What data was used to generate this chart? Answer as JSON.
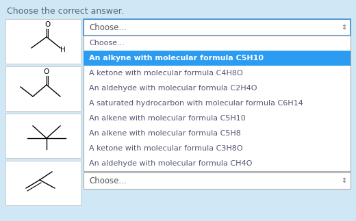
{
  "bg_color": "#d0e8f5",
  "title": "Choose the correct answer.",
  "title_color": "#4a6b7a",
  "title_fontsize": 9,
  "dropdown1_text": "Choose...",
  "dropdown2_text": "Choose...",
  "dropdown_bg": "#ffffff",
  "dropdown_border": "#5b9bd5",
  "dropdown_text_color": "#555555",
  "menu_items": [
    "Choose...",
    "An alkyne with molecular formula C5H10",
    "A ketone with molecular formula C4H8O",
    "An aldehyde with molecular formula C2H4O",
    "A saturated hydrocarbon with molecular formula C6H14",
    "An alkene with molecular formula C5H10",
    "An alkene with molecular formula C5H8",
    "A ketone with molecular formula C3H8O",
    "An aldehyde with molecular formula CH4O"
  ],
  "highlighted_item_index": 1,
  "highlight_color": "#2b9cf2",
  "highlight_text_color": "#ffffff",
  "menu_text_color": "#555577",
  "menu_bg": "#ffffff",
  "menu_border": "#aaaaaa",
  "molecule_box_bg": "#ffffff",
  "molecule_box_border": "#cccccc",
  "figsize": [
    5.2,
    3.23
  ],
  "dpi": 100
}
